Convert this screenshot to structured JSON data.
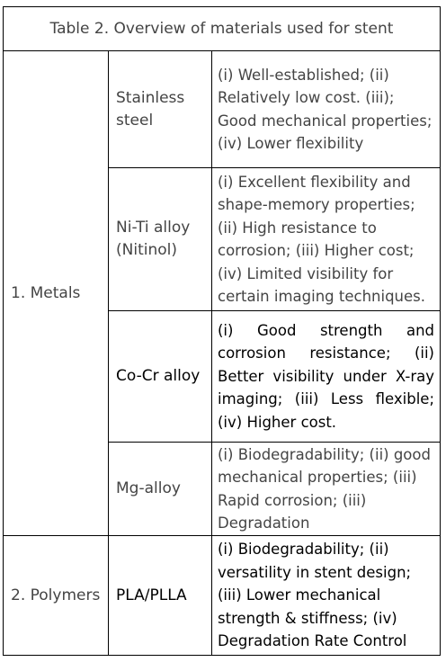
{
  "table": {
    "title": "Table 2. Overview of materials used for stent",
    "groups": [
      {
        "label": "1. Metals",
        "rows": [
          {
            "material": "Stainless steel",
            "description": "(i) Well-established; (ii) Relatively low cost. (iii); Good mechanical properties; (iv) Lower flexibility"
          },
          {
            "material": "Ni-Ti alloy (Nitinol)",
            "description": "(i) Excellent flexibility and shape-memory properties; (ii) High resistance to corrosion; (iii) Higher cost; (iv) Limited visibility for certain imaging techniques."
          },
          {
            "material": "Co-Cr alloy",
            "description": "(i) Good strength and corrosion resistance; (ii) Better visibility under X-ray imaging; (iii) Less flexible; (iv) Higher cost."
          },
          {
            "material": "Mg-alloy",
            "description": "(i) Biodegradability; (ii) good mechanical properties; (iii) Rapid corrosion; (iii) Degradation"
          }
        ]
      },
      {
        "label": "2. Polymers",
        "rows": [
          {
            "material": "PLA/PLLA",
            "description": "(i) Biodegradability; (ii) versatility in stent design; (iii) Lower mechanical strength & stiffness; (iv) Degradation Rate Control"
          }
        ]
      }
    ]
  }
}
